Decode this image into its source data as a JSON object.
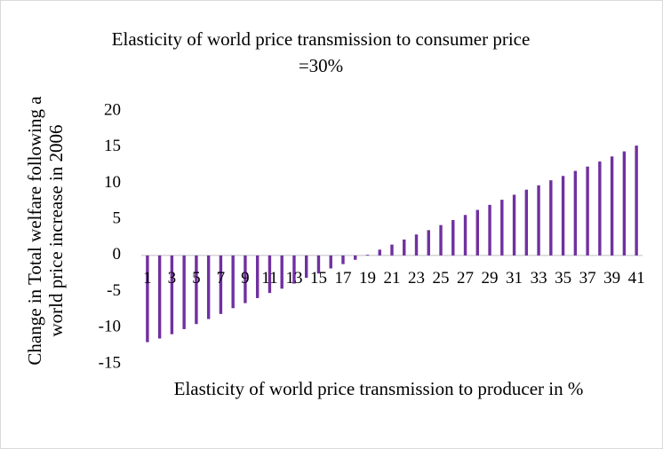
{
  "chart_data": {
    "type": "bar",
    "title": "Elasticity of world price transmission to consumer price =30%",
    "x_label": "Elasticity of world price transmission to producer in %",
    "y_label": "Change in Total welfare following a world price increase in 2006",
    "categories": [
      "1",
      null,
      "3",
      null,
      "5",
      null,
      "7",
      null,
      "9",
      null,
      "11",
      null,
      "13",
      null,
      "15",
      null,
      "17",
      null,
      "19",
      null,
      "21",
      null,
      "23",
      null,
      "25",
      null,
      "27",
      null,
      "29",
      null,
      "31",
      null,
      "33",
      null,
      "35",
      null,
      "37",
      null,
      "39",
      null,
      "41"
    ],
    "values": [
      -12,
      -11.5,
      -10.9,
      -10.2,
      -9.5,
      -8.8,
      -8.1,
      -7.3,
      -6.6,
      -5.9,
      -5.2,
      -4.6,
      -3.9,
      -3.1,
      -2.5,
      -1.8,
      -1.2,
      -0.6,
      0.1,
      0.8,
      1.5,
      2.2,
      2.9,
      3.5,
      4.2,
      4.9,
      5.6,
      6.3,
      7.0,
      7.7,
      8.4,
      9.1,
      9.7,
      10.4,
      11.0,
      11.7,
      12.3,
      13.0,
      13.7,
      14.4,
      15.2
    ],
    "color": "#7030a0",
    "ylim": [
      -15,
      20
    ],
    "yticks": [
      -15,
      -10,
      -5,
      0,
      5,
      10,
      15,
      20
    ],
    "grid": false
  }
}
